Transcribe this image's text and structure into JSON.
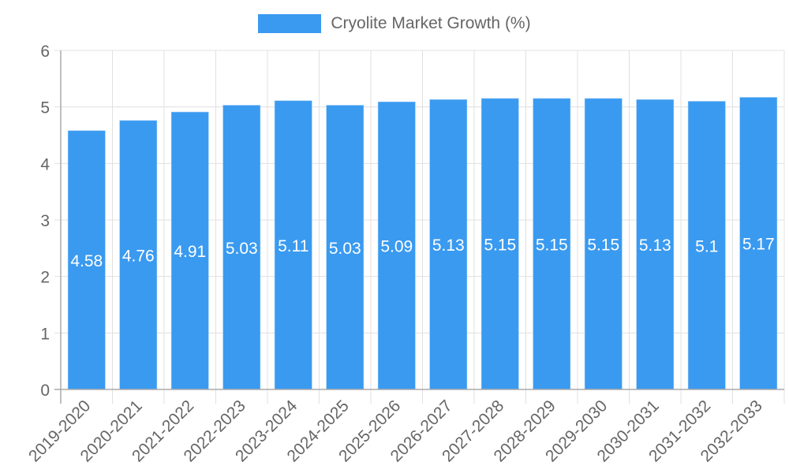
{
  "chart_data": {
    "type": "bar",
    "title": "",
    "legend": [
      {
        "label": "Cryolite Market Growth (%)",
        "color": "#3a9af0"
      }
    ],
    "legend_position": "top",
    "categories": [
      "2019-2020",
      "2020-2021",
      "2021-2022",
      "2022-2023",
      "2023-2024",
      "2024-2025",
      "2025-2026",
      "2026-2027",
      "2027-2028",
      "2028-2029",
      "2029-2030",
      "2030-2031",
      "2031-2032",
      "2032-2033"
    ],
    "series": [
      {
        "name": "Cryolite Market Growth (%)",
        "color": "#3a9af0",
        "values": [
          4.58,
          4.76,
          4.91,
          5.03,
          5.11,
          5.03,
          5.09,
          5.13,
          5.15,
          5.15,
          5.15,
          5.13,
          5.1,
          5.17
        ]
      }
    ],
    "data_labels": [
      "4.58",
      "4.76",
      "4.91",
      "5.03",
      "5.11",
      "5.03",
      "5.09",
      "5.13",
      "5.15",
      "5.15",
      "5.15",
      "5.13",
      "5.1",
      "5.17"
    ],
    "xlabel": "",
    "ylabel": "",
    "ylim": [
      0,
      6
    ],
    "yticks": [
      "0",
      "1",
      "2",
      "3",
      "4",
      "5",
      "6"
    ],
    "grid": true,
    "xtick_rotation": -45
  },
  "legend": {
    "label": "Cryolite Market Growth (%)"
  }
}
